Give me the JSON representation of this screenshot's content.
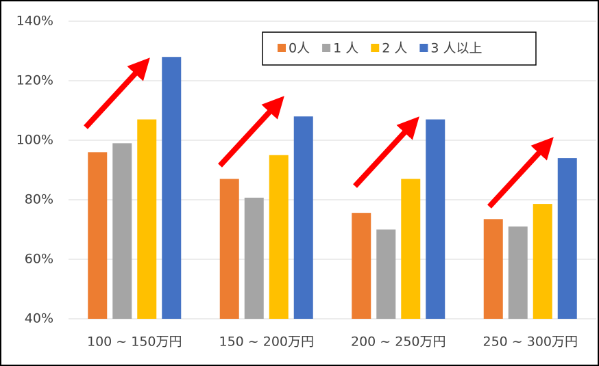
{
  "chart_data": {
    "type": "bar",
    "categories": [
      "100 ~ 150万円",
      "150 ~ 200万円",
      "200 ~ 250万円",
      "250 ~ 300万円"
    ],
    "series": [
      {
        "name": "0人",
        "color": "#ed7d31",
        "values": [
          96,
          87,
          75.6,
          73.5
        ]
      },
      {
        "name": "1 人",
        "color": "#a5a5a5",
        "values": [
          99,
          80.7,
          70,
          71
        ]
      },
      {
        "name": "2 人",
        "color": "#ffc000",
        "values": [
          107,
          95,
          87,
          78.6
        ]
      },
      {
        "name": "3 人以上",
        "color": "#4472c4",
        "values": [
          128,
          108,
          107,
          94
        ]
      }
    ],
    "ylim": [
      40,
      140
    ],
    "yticks": [
      {
        "value": 40,
        "label": "40%"
      },
      {
        "value": 60,
        "label": "60%"
      },
      {
        "value": 80,
        "label": "80%"
      },
      {
        "value": 100,
        "label": "100%"
      },
      {
        "value": 120,
        "label": "120%"
      },
      {
        "value": 140,
        "label": "140%"
      }
    ],
    "grid": true,
    "legend": "top-right"
  }
}
